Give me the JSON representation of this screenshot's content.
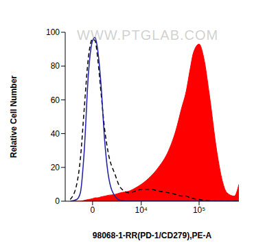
{
  "chart_data": {
    "type": "histogram",
    "xlabel": "98068-1-RR(PD-1/CD279),PE-A",
    "ylabel": "Relative Cell Number",
    "annotations": [
      "WWW.PTGLAB.COM"
    ],
    "x": [
      -3000,
      -2000,
      -1500,
      -1000,
      -500,
      0,
      300,
      600,
      1000,
      1500,
      2000,
      3000,
      4000,
      6000,
      8000,
      10000,
      15000,
      20000,
      30000,
      40000,
      50000,
      60000,
      70000,
      80000,
      100000,
      120000,
      150000,
      200000,
      250000,
      300000,
      400000,
      480000
    ],
    "xlim": [
      -3900,
      480000
    ],
    "xticks": [
      0,
      {
        "value": 10000,
        "label": "10⁴"
      },
      {
        "value": 100000,
        "label": "10⁵"
      }
    ],
    "ylim": [
      0,
      100
    ],
    "yticks": [
      0,
      20,
      40,
      60,
      80,
      100
    ],
    "grid": false,
    "series": [
      {
        "type": "area",
        "color": "#ff0000",
        "line_style": "solid",
        "values": [
          0,
          0,
          0,
          0.5,
          1,
          1.5,
          2,
          2,
          2.5,
          3,
          3.5,
          4,
          5,
          6,
          8,
          10,
          15,
          20,
          30,
          42,
          55,
          65,
          78,
          88,
          93,
          85,
          63,
          30,
          12,
          5,
          3,
          10
        ]
      },
      {
        "type": "line",
        "color": "#000000",
        "line_style": "dashed",
        "values": [
          1,
          10,
          25,
          55,
          85,
          96,
          95,
          85,
          65,
          42,
          28,
          16,
          8,
          5,
          6,
          7,
          7,
          6,
          5,
          4,
          3,
          3,
          2,
          1.5,
          1,
          0.5,
          0.3,
          0,
          0,
          0,
          0,
          0
        ]
      },
      {
        "type": "line",
        "color": "#1c1ca8",
        "line_style": "solid",
        "values": [
          0,
          1,
          5,
          30,
          75,
          95,
          97,
          90,
          70,
          35,
          15,
          3,
          0.5,
          0,
          0,
          0,
          0,
          0,
          0,
          0,
          0,
          0,
          0,
          0,
          0,
          0,
          0,
          0,
          0,
          0,
          0,
          0
        ]
      }
    ]
  }
}
